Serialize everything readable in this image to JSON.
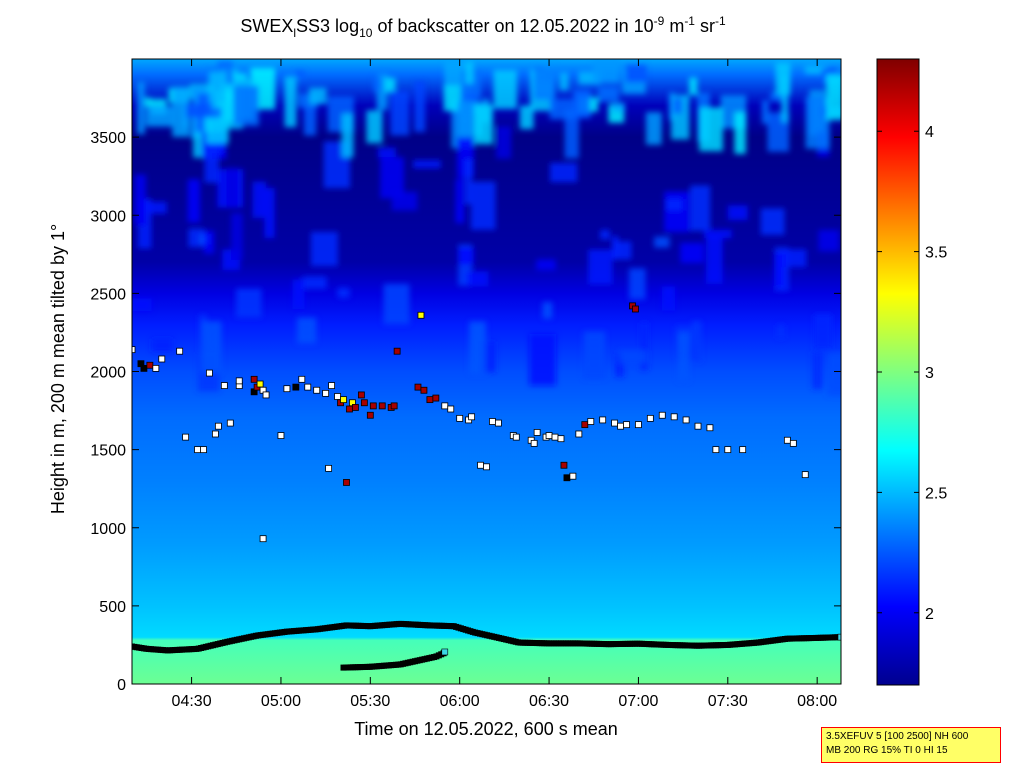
{
  "chart_data": {
    "type": "heatmap",
    "title": {
      "prefix": "SWEX",
      "sub1": "l",
      "mid": "SS3 log",
      "sub2": "10",
      "rest": " of backscatter on 12.05.2022 in 10",
      "sup1": "-9",
      "units": " m",
      "sup2": "-1",
      "units2": " sr",
      "sup3": "-1"
    },
    "xlabel": "Time on 12.05.2022, 600 s mean",
    "ylabel": "Height in m, 200 m mean tilted by 1°",
    "x_range_minutes": [
      250,
      488
    ],
    "ylim": [
      0,
      4000
    ],
    "x_ticks": [
      {
        "t": 270,
        "label": "04:30"
      },
      {
        "t": 300,
        "label": "05:00"
      },
      {
        "t": 330,
        "label": "05:30"
      },
      {
        "t": 360,
        "label": "06:00"
      },
      {
        "t": 390,
        "label": "06:30"
      },
      {
        "t": 420,
        "label": "07:00"
      },
      {
        "t": 450,
        "label": "07:30"
      },
      {
        "t": 480,
        "label": "08:00"
      }
    ],
    "y_ticks": [
      0,
      500,
      1000,
      1500,
      2000,
      2500,
      3000,
      3500
    ],
    "colorbar": {
      "min": 1.7,
      "max": 4.3,
      "ticks": [
        2,
        2.5,
        3,
        3.5,
        4
      ],
      "colormap": "jet"
    },
    "field_profile": [
      {
        "h": 0,
        "v": 2.95
      },
      {
        "h": 280,
        "v": 2.85
      },
      {
        "h": 300,
        "v": 2.58
      },
      {
        "h": 500,
        "v": 2.52
      },
      {
        "h": 900,
        "v": 2.42
      },
      {
        "h": 1300,
        "v": 2.35
      },
      {
        "h": 1700,
        "v": 2.3
      },
      {
        "h": 2000,
        "v": 2.22
      },
      {
        "h": 2300,
        "v": 2.1
      },
      {
        "h": 2500,
        "v": 1.95
      },
      {
        "h": 2700,
        "v": 1.8
      },
      {
        "h": 3500,
        "v": 1.72
      },
      {
        "h": 3700,
        "v": 1.85
      },
      {
        "h": 3900,
        "v": 2.3
      },
      {
        "h": 4000,
        "v": 2.45
      }
    ],
    "mixing_layer_height": [
      {
        "t": 250,
        "h": 240
      },
      {
        "t": 255,
        "h": 225
      },
      {
        "t": 262,
        "h": 215
      },
      {
        "t": 272,
        "h": 225
      },
      {
        "t": 282,
        "h": 270
      },
      {
        "t": 292,
        "h": 310
      },
      {
        "t": 302,
        "h": 335
      },
      {
        "t": 312,
        "h": 350
      },
      {
        "t": 322,
        "h": 375
      },
      {
        "t": 330,
        "h": 370
      },
      {
        "t": 340,
        "h": 385
      },
      {
        "t": 350,
        "h": 375
      },
      {
        "t": 358,
        "h": 370
      },
      {
        "t": 365,
        "h": 330
      },
      {
        "t": 372,
        "h": 300
      },
      {
        "t": 380,
        "h": 265
      },
      {
        "t": 390,
        "h": 260
      },
      {
        "t": 400,
        "h": 260
      },
      {
        "t": 410,
        "h": 255
      },
      {
        "t": 420,
        "h": 258
      },
      {
        "t": 430,
        "h": 250
      },
      {
        "t": 440,
        "h": 245
      },
      {
        "t": 450,
        "h": 250
      },
      {
        "t": 460,
        "h": 265
      },
      {
        "t": 470,
        "h": 290
      },
      {
        "t": 480,
        "h": 295
      },
      {
        "t": 488,
        "h": 300
      }
    ],
    "secondary_layer": [
      {
        "t": 321,
        "h": 105
      },
      {
        "t": 330,
        "h": 110
      },
      {
        "t": 340,
        "h": 125
      },
      {
        "t": 346,
        "h": 150
      },
      {
        "t": 352,
        "h": 175
      },
      {
        "t": 355,
        "h": 200
      }
    ],
    "cloud_markers": [
      {
        "t": 250,
        "h": 2140,
        "v": 2.9
      },
      {
        "t": 253,
        "h": 2050,
        "v": 3.0
      },
      {
        "t": 254,
        "h": 2020,
        "v": 3.0
      },
      {
        "t": 256,
        "h": 2040,
        "v": 4.2
      },
      {
        "t": 258,
        "h": 2020,
        "v": 2.9
      },
      {
        "t": 260,
        "h": 2080,
        "v": 2.9
      },
      {
        "t": 266,
        "h": 2130,
        "v": 2.9
      },
      {
        "t": 268,
        "h": 1580,
        "v": 2.9
      },
      {
        "t": 272,
        "h": 1500,
        "v": 2.9
      },
      {
        "t": 274,
        "h": 1500,
        "v": 2.9
      },
      {
        "t": 276,
        "h": 1990,
        "v": 2.9
      },
      {
        "t": 278,
        "h": 1600,
        "v": 2.9
      },
      {
        "t": 279,
        "h": 1650,
        "v": 2.9
      },
      {
        "t": 281,
        "h": 1910,
        "v": 2.9
      },
      {
        "t": 283,
        "h": 1670,
        "v": 2.9
      },
      {
        "t": 286,
        "h": 1910,
        "v": 2.9
      },
      {
        "t": 286,
        "h": 1940,
        "v": 2.9
      },
      {
        "t": 291,
        "h": 1950,
        "v": 4.2
      },
      {
        "t": 291,
        "h": 1870,
        "v": 3.0
      },
      {
        "t": 292,
        "h": 1900,
        "v": 4.2
      },
      {
        "t": 293,
        "h": 1920,
        "v": 3.3
      },
      {
        "t": 294,
        "h": 1880,
        "v": 2.9
      },
      {
        "t": 294,
        "h": 930,
        "v": 2.9
      },
      {
        "t": 295,
        "h": 1850,
        "v": 2.9
      },
      {
        "t": 300,
        "h": 1590,
        "v": 2.9
      },
      {
        "t": 302,
        "h": 1890,
        "v": 2.9
      },
      {
        "t": 305,
        "h": 1900,
        "v": 3.0
      },
      {
        "t": 307,
        "h": 1950,
        "v": 2.9
      },
      {
        "t": 309,
        "h": 1900,
        "v": 2.9
      },
      {
        "t": 312,
        "h": 1880,
        "v": 2.9
      },
      {
        "t": 315,
        "h": 1860,
        "v": 2.9
      },
      {
        "t": 316,
        "h": 1380,
        "v": 2.9
      },
      {
        "t": 317,
        "h": 1910,
        "v": 2.9
      },
      {
        "t": 319,
        "h": 1840,
        "v": 2.9
      },
      {
        "t": 320,
        "h": 1800,
        "v": 4.2
      },
      {
        "t": 321,
        "h": 1820,
        "v": 3.3
      },
      {
        "t": 322,
        "h": 1290,
        "v": 4.2
      },
      {
        "t": 323,
        "h": 1760,
        "v": 4.2
      },
      {
        "t": 324,
        "h": 1800,
        "v": 3.3
      },
      {
        "t": 325,
        "h": 1770,
        "v": 4.2
      },
      {
        "t": 327,
        "h": 1850,
        "v": 4.2
      },
      {
        "t": 328,
        "h": 1800,
        "v": 4.2
      },
      {
        "t": 330,
        "h": 1720,
        "v": 4.2
      },
      {
        "t": 331,
        "h": 1780,
        "v": 4.2
      },
      {
        "t": 334,
        "h": 1780,
        "v": 4.2
      },
      {
        "t": 337,
        "h": 1770,
        "v": 4.2
      },
      {
        "t": 338,
        "h": 1780,
        "v": 4.2
      },
      {
        "t": 339,
        "h": 2130,
        "v": 4.2
      },
      {
        "t": 346,
        "h": 1900,
        "v": 4.2
      },
      {
        "t": 347,
        "h": 2360,
        "v": 3.3
      },
      {
        "t": 348,
        "h": 1880,
        "v": 4.2
      },
      {
        "t": 350,
        "h": 1820,
        "v": 4.2
      },
      {
        "t": 352,
        "h": 1830,
        "v": 4.2
      },
      {
        "t": 355,
        "h": 1780,
        "v": 2.9
      },
      {
        "t": 357,
        "h": 1760,
        "v": 2.9
      },
      {
        "t": 360,
        "h": 1700,
        "v": 2.9
      },
      {
        "t": 363,
        "h": 1690,
        "v": 2.9
      },
      {
        "t": 364,
        "h": 1710,
        "v": 2.9
      },
      {
        "t": 367,
        "h": 1400,
        "v": 2.9
      },
      {
        "t": 369,
        "h": 1390,
        "v": 2.9
      },
      {
        "t": 371,
        "h": 1680,
        "v": 2.9
      },
      {
        "t": 373,
        "h": 1670,
        "v": 2.9
      },
      {
        "t": 378,
        "h": 1590,
        "v": 2.9
      },
      {
        "t": 379,
        "h": 1580,
        "v": 2.9
      },
      {
        "t": 384,
        "h": 1560,
        "v": 2.9
      },
      {
        "t": 385,
        "h": 1540,
        "v": 2.9
      },
      {
        "t": 386,
        "h": 1610,
        "v": 2.9
      },
      {
        "t": 389,
        "h": 1580,
        "v": 2.9
      },
      {
        "t": 390,
        "h": 1590,
        "v": 2.9
      },
      {
        "t": 392,
        "h": 1580,
        "v": 2.9
      },
      {
        "t": 394,
        "h": 1570,
        "v": 2.9
      },
      {
        "t": 395,
        "h": 1400,
        "v": 4.2
      },
      {
        "t": 396,
        "h": 1320,
        "v": 3.0
      },
      {
        "t": 398,
        "h": 1330,
        "v": 2.9
      },
      {
        "t": 400,
        "h": 1600,
        "v": 2.9
      },
      {
        "t": 402,
        "h": 1660,
        "v": 4.2
      },
      {
        "t": 404,
        "h": 1680,
        "v": 2.9
      },
      {
        "t": 408,
        "h": 1690,
        "v": 2.9
      },
      {
        "t": 412,
        "h": 1670,
        "v": 2.9
      },
      {
        "t": 414,
        "h": 1650,
        "v": 2.9
      },
      {
        "t": 416,
        "h": 1660,
        "v": 2.9
      },
      {
        "t": 418,
        "h": 2420,
        "v": 4.2
      },
      {
        "t": 419,
        "h": 2400,
        "v": 4.2
      },
      {
        "t": 420,
        "h": 1660,
        "v": 2.9
      },
      {
        "t": 424,
        "h": 1700,
        "v": 2.9
      },
      {
        "t": 428,
        "h": 1720,
        "v": 2.9
      },
      {
        "t": 432,
        "h": 1710,
        "v": 2.9
      },
      {
        "t": 436,
        "h": 1690,
        "v": 2.9
      },
      {
        "t": 440,
        "h": 1650,
        "v": 2.9
      },
      {
        "t": 444,
        "h": 1640,
        "v": 2.9
      },
      {
        "t": 446,
        "h": 1500,
        "v": 2.9
      },
      {
        "t": 450,
        "h": 1500,
        "v": 2.9
      },
      {
        "t": 455,
        "h": 1500,
        "v": 2.9
      },
      {
        "t": 470,
        "h": 1560,
        "v": 2.9
      },
      {
        "t": 472,
        "h": 1540,
        "v": 2.9
      },
      {
        "t": 476,
        "h": 1340,
        "v": 2.9
      }
    ]
  },
  "param_box": {
    "line1": "3.5XEFUV 5 [100 2500] NH 600",
    "line2": "MB 200 RG 15% TI 0 HI 15"
  }
}
